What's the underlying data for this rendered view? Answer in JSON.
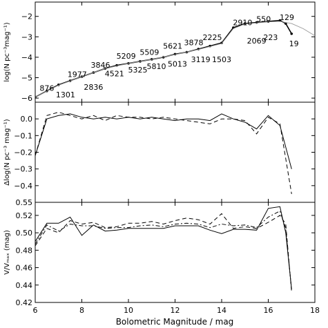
{
  "figure": {
    "xlabel": "Bolometric Magnitude / mag"
  },
  "chart_data": [
    {
      "type": "line",
      "panel": "top",
      "ylabel": "log(N pc⁻³mag⁻¹)",
      "xlim": [
        6,
        18
      ],
      "ylim": [
        -6.2,
        -1.3
      ],
      "yticks": [
        -6,
        -5,
        -4,
        -3,
        -2
      ],
      "ytick_labels": [
        "−6",
        "−5",
        "−4",
        "−3",
        "−2"
      ],
      "series": [
        {
          "style": "solid-with-markers",
          "color": "#000000",
          "x": [
            6.0,
            6.5,
            7.0,
            7.5,
            8.0,
            8.5,
            9.0,
            9.5,
            10.0,
            10.5,
            11.0,
            11.5,
            12.0,
            12.5,
            13.0,
            13.5,
            14.0,
            14.5,
            15.0,
            15.5,
            16.0,
            16.5,
            16.75,
            17.0
          ],
          "y": [
            -5.95,
            -5.65,
            -5.35,
            -5.15,
            -4.95,
            -4.75,
            -4.55,
            -4.4,
            -4.3,
            -4.2,
            -4.1,
            -4.0,
            -3.85,
            -3.75,
            -3.6,
            -3.45,
            -3.3,
            -2.55,
            -2.35,
            -2.3,
            -2.25,
            -2.2,
            -2.35,
            -2.85
          ]
        },
        {
          "style": "solid-thin",
          "color": "#999999",
          "x": [
            6.0,
            7.0,
            8.0,
            9.0,
            10.0,
            11.0,
            12.0,
            13.0,
            14.0,
            14.5,
            15.0,
            15.5,
            16.0,
            16.5,
            17.0,
            17.5,
            18.0
          ],
          "y": [
            -5.95,
            -5.37,
            -4.95,
            -4.55,
            -4.3,
            -4.1,
            -3.87,
            -3.62,
            -3.33,
            -2.6,
            -2.37,
            -2.32,
            -2.27,
            -2.25,
            -2.35,
            -2.6,
            -2.95
          ]
        }
      ],
      "point_labels": [
        {
          "text": "876",
          "x": 6.5,
          "y": -5.5
        },
        {
          "text": "1301",
          "x": 7.3,
          "y": -5.82
        },
        {
          "text": "1977",
          "x": 7.8,
          "y": -4.83
        },
        {
          "text": "2836",
          "x": 8.5,
          "y": -5.45
        },
        {
          "text": "3846",
          "x": 8.8,
          "y": -4.38
        },
        {
          "text": "4521",
          "x": 9.4,
          "y": -4.8
        },
        {
          "text": "5209",
          "x": 9.9,
          "y": -3.93
        },
        {
          "text": "5325",
          "x": 10.4,
          "y": -4.62
        },
        {
          "text": "5509",
          "x": 10.9,
          "y": -3.75
        },
        {
          "text": "5810",
          "x": 11.2,
          "y": -4.45
        },
        {
          "text": "5621",
          "x": 11.9,
          "y": -3.45
        },
        {
          "text": "5013",
          "x": 12.1,
          "y": -4.32
        },
        {
          "text": "3878",
          "x": 12.8,
          "y": -3.27
        },
        {
          "text": "3119",
          "x": 13.1,
          "y": -4.1
        },
        {
          "text": "2225",
          "x": 13.6,
          "y": -3.02
        },
        {
          "text": "1503",
          "x": 14.0,
          "y": -4.1
        },
        {
          "text": "2910",
          "x": 14.9,
          "y": -2.3
        },
        {
          "text": "2069",
          "x": 15.5,
          "y": -3.2
        },
        {
          "text": "550",
          "x": 15.8,
          "y": -2.12
        },
        {
          "text": "223",
          "x": 16.1,
          "y": -3.02
        },
        {
          "text": "129",
          "x": 16.8,
          "y": -2.05
        },
        {
          "text": "19",
          "x": 17.1,
          "y": -3.32
        }
      ]
    },
    {
      "type": "line",
      "panel": "middle",
      "ylabel": "Δlog(N pc⁻³ mag⁻¹)",
      "xlim": [
        6,
        18
      ],
      "ylim": [
        -0.5,
        0.1
      ],
      "yticks": [
        0.0,
        -0.1,
        -0.2,
        -0.3,
        -0.4
      ],
      "ytick_labels": [
        "0.0",
        "−0.1",
        "−0.2",
        "−0.3",
        "−0.4"
      ],
      "series": [
        {
          "style": "solid",
          "x": [
            6.0,
            6.5,
            7.0,
            7.5,
            8.0,
            8.5,
            9.0,
            9.5,
            10.0,
            10.5,
            11.0,
            11.5,
            12.0,
            12.5,
            13.0,
            13.5,
            14.0,
            14.5,
            15.0,
            15.5,
            16.0,
            16.5,
            17.0
          ],
          "y": [
            -0.22,
            0.0,
            0.02,
            0.03,
            0.01,
            0.0,
            0.01,
            0.0,
            0.01,
            0.0,
            0.01,
            0.0,
            -0.01,
            0.0,
            0.0,
            -0.01,
            0.03,
            0.0,
            -0.02,
            -0.06,
            0.02,
            -0.04,
            -0.3
          ]
        },
        {
          "style": "dashed",
          "x": [
            6.0,
            6.5,
            7.0,
            7.5,
            8.0,
            8.5,
            9.0,
            9.5,
            10.0,
            10.5,
            11.0,
            11.5,
            12.0,
            12.5,
            13.0,
            13.5,
            14.0,
            14.5,
            15.0,
            15.5,
            16.0,
            16.5,
            17.0
          ],
          "y": [
            -0.22,
            0.02,
            0.04,
            0.02,
            0.0,
            0.02,
            -0.01,
            0.02,
            0.01,
            0.01,
            0.0,
            0.01,
            0.0,
            -0.01,
            -0.02,
            -0.03,
            0.0,
            0.0,
            -0.01,
            -0.09,
            0.01,
            -0.03,
            -0.45
          ]
        }
      ]
    },
    {
      "type": "line",
      "panel": "bottom",
      "ylabel": "V/Vₘₐₓ (mag)",
      "xlim": [
        6,
        18
      ],
      "xticks": [
        6,
        8,
        10,
        12,
        14,
        16,
        18
      ],
      "ylim": [
        0.42,
        0.535
      ],
      "yticks": [
        0.42,
        0.44,
        0.46,
        0.48,
        0.5,
        0.52
      ],
      "ytick_labels": [
        "0.42",
        "0.44",
        "0.46",
        "0.48",
        "0.50",
        "0.52"
      ],
      "overlap_label": "0.55",
      "series": [
        {
          "style": "solid",
          "x": [
            6.0,
            6.5,
            7.0,
            7.5,
            8.0,
            8.5,
            9.0,
            9.5,
            10.0,
            10.5,
            11.0,
            11.5,
            12.0,
            12.5,
            13.0,
            13.5,
            14.0,
            14.5,
            15.0,
            15.5,
            16.0,
            16.5,
            16.75,
            17.0
          ],
          "y": [
            0.49,
            0.511,
            0.511,
            0.518,
            0.497,
            0.509,
            0.502,
            0.503,
            0.505,
            0.505,
            0.505,
            0.505,
            0.508,
            0.508,
            0.508,
            0.503,
            0.499,
            0.504,
            0.504,
            0.503,
            0.528,
            0.53,
            0.5,
            0.435
          ]
        },
        {
          "style": "dashed",
          "x": [
            6.0,
            6.5,
            7.0,
            7.5,
            8.0,
            8.5,
            9.0,
            9.5,
            10.0,
            10.5,
            11.0,
            11.5,
            12.0,
            12.5,
            13.0,
            13.5,
            14.0,
            14.5,
            15.0,
            15.5,
            16.0,
            16.5,
            16.75,
            17.0
          ],
          "y": [
            0.485,
            0.505,
            0.5,
            0.514,
            0.51,
            0.512,
            0.506,
            0.507,
            0.511,
            0.511,
            0.513,
            0.51,
            0.514,
            0.517,
            0.515,
            0.51,
            0.522,
            0.505,
            0.507,
            0.505,
            0.512,
            0.52,
            0.51,
            0.432
          ]
        },
        {
          "style": "dashdot",
          "x": [
            6.0,
            6.5,
            7.0,
            7.5,
            8.0,
            8.5,
            9.0,
            9.5,
            10.0,
            10.5,
            11.0,
            11.5,
            12.0,
            12.5,
            13.0,
            13.5,
            14.0,
            14.5,
            15.0,
            15.5,
            16.0,
            16.5,
            16.75,
            17.0
          ],
          "y": [
            0.487,
            0.509,
            0.502,
            0.51,
            0.508,
            0.508,
            0.505,
            0.506,
            0.506,
            0.508,
            0.509,
            0.507,
            0.51,
            0.511,
            0.51,
            0.506,
            0.51,
            0.508,
            0.509,
            0.506,
            0.518,
            0.525,
            0.505,
            0.434
          ]
        }
      ]
    }
  ]
}
